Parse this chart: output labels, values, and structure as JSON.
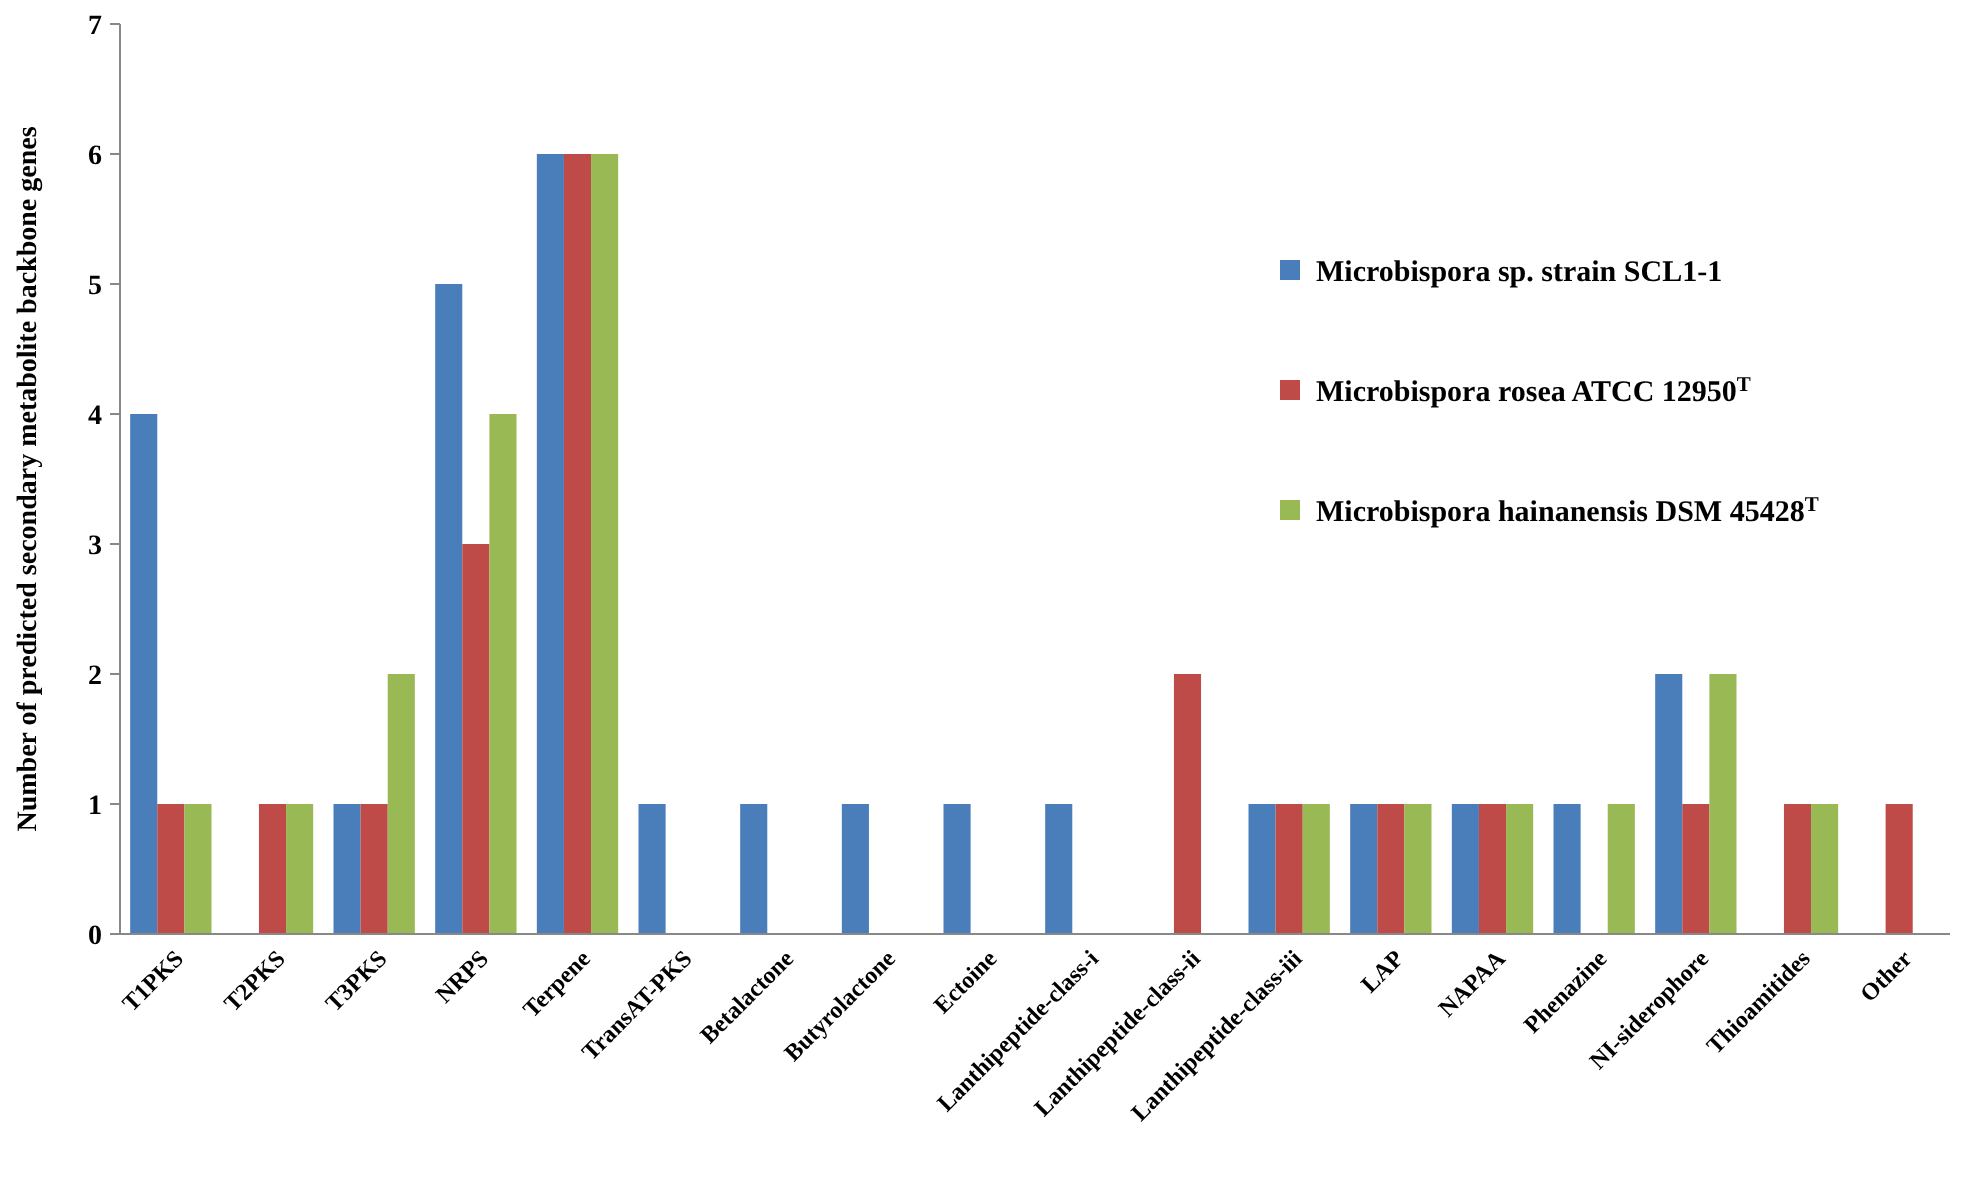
{
  "chart_data": {
    "type": "bar",
    "ylabel": "Number of predicted secondary metabolite backbone genes",
    "categories": [
      "T1PKS",
      "T2PKS",
      "T3PKS",
      "NRPS",
      "Terpene",
      "TransAT-PKS",
      "Betalactone",
      "Butyrolactone",
      "Ectoine",
      "Lanthipeptide-class-i",
      "Lanthipeptide-class-ii",
      "Lanthipeptide-class-iii",
      "LAP",
      "NAPAA",
      "Phenazine",
      "NI-siderophore",
      "Thioamitides",
      "Other"
    ],
    "series": [
      {
        "name": "Microbispora sp. strain SCL1-1",
        "color": "#4a7ebb",
        "values": [
          4,
          0,
          1,
          5,
          6,
          1,
          1,
          1,
          1,
          1,
          0,
          1,
          1,
          1,
          1,
          2,
          0,
          0
        ]
      },
      {
        "name": "Microbispora rosea ATCC 12950$^{T}$",
        "color": "#be4b48",
        "values": [
          1,
          1,
          1,
          3,
          6,
          0,
          0,
          0,
          0,
          0,
          2,
          1,
          1,
          1,
          0,
          1,
          1,
          1
        ]
      },
      {
        "name": "Microbispora hainanensis DSM 45428$^{T}$",
        "color": "#98b954",
        "values": [
          1,
          1,
          2,
          4,
          6,
          0,
          0,
          0,
          0,
          0,
          0,
          1,
          1,
          1,
          1,
          2,
          1,
          0
        ]
      }
    ],
    "ylim": [
      0,
      7
    ],
    "yticks": [
      0,
      1,
      2,
      3,
      4,
      5,
      6,
      7
    ],
    "grid": false,
    "legend": "top right"
  }
}
